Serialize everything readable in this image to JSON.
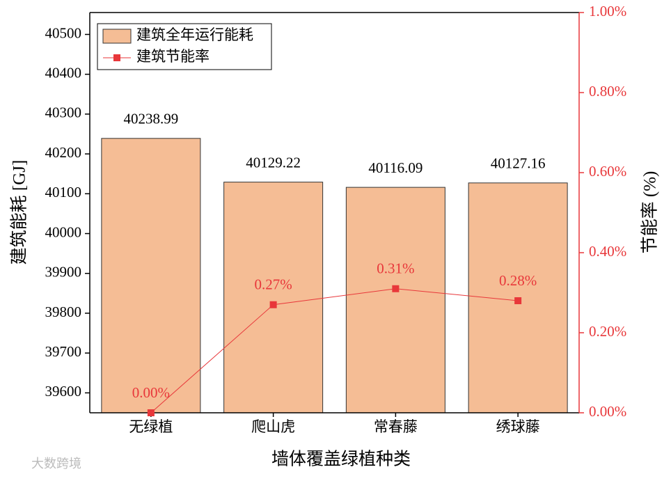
{
  "chart_data": {
    "type": "bar",
    "x_label": "墙体覆盖绿植种类",
    "y_label": "建筑能耗 [GJ]",
    "y2_label": "节能率 (%)",
    "categories": [
      "无绿植",
      "爬山虎",
      "常春藤",
      "绣球藤"
    ],
    "series": [
      {
        "name": "建筑全年运行能耗",
        "type": "bar",
        "color": "#f5bd95",
        "values": [
          40238.99,
          40129.22,
          40116.09,
          40127.16
        ]
      },
      {
        "name": "建筑节能率",
        "type": "line",
        "axis": "y2",
        "color": "#e8373a",
        "values": [
          0,
          0.27,
          0.31,
          0.28
        ],
        "value_labels": [
          "0.00%",
          "0.27%",
          "0.31%",
          "0.28%"
        ]
      }
    ],
    "ylim": [
      39550,
      40555
    ],
    "yticks": [
      39600,
      39700,
      39800,
      39900,
      40000,
      40100,
      40200,
      40300,
      40400,
      40500
    ],
    "y2lim": [
      0,
      1
    ],
    "y2ticks": [
      {
        "value": 0,
        "label": "0.00%"
      },
      {
        "value": 0.2,
        "label": "0.20%"
      },
      {
        "value": 0.4,
        "label": "0.40%"
      },
      {
        "value": 0.6,
        "label": "0.60%"
      },
      {
        "value": 0.8,
        "label": "0.80%"
      },
      {
        "value": 1,
        "label": "1.00%"
      }
    ],
    "legend": "upper left",
    "watermark": "大数跨境"
  }
}
